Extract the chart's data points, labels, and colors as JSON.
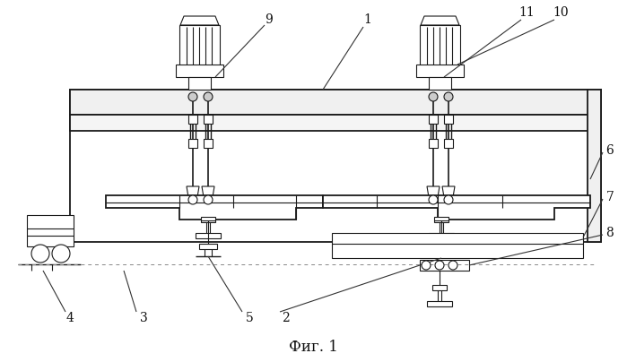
{
  "bg_color": "#ffffff",
  "line_color": "#1a1a1a",
  "title": "Фиг. 1",
  "fig_width": 6.99,
  "fig_height": 4.04,
  "dpi": 100
}
